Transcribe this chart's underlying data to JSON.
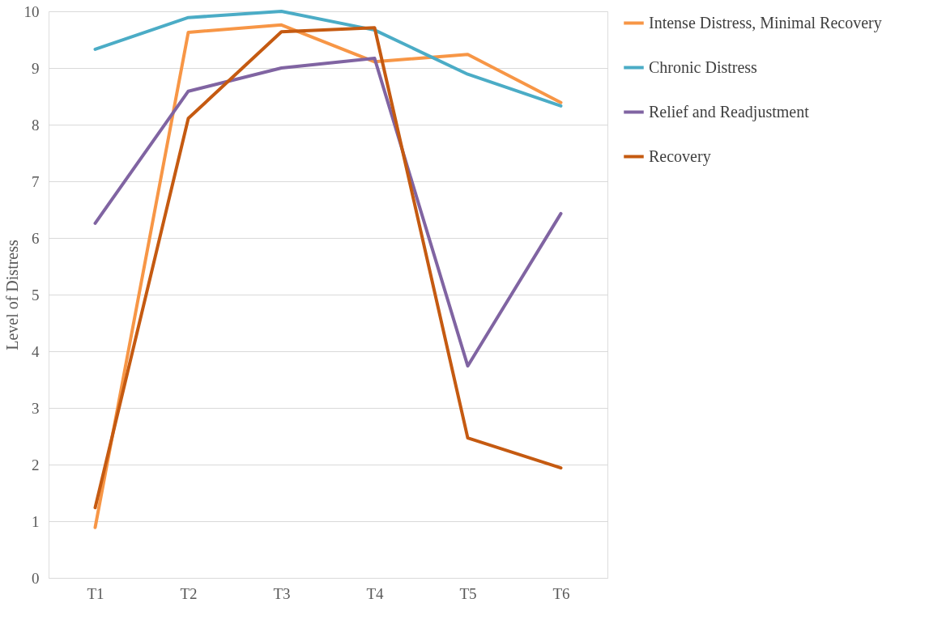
{
  "chart_data": {
    "type": "line",
    "ylabel": "Level of Distress",
    "categories": [
      "T1",
      "T2",
      "T3",
      "T4",
      "T5",
      "T6"
    ],
    "series": [
      {
        "name": "Intense Distress, Minimal Recovery",
        "color": "#f79646",
        "values": [
          0.89,
          9.63,
          9.76,
          9.11,
          9.24,
          8.39
        ]
      },
      {
        "name": "Chronic Distress",
        "color": "#4bacc6",
        "values": [
          9.33,
          9.89,
          10.0,
          9.67,
          8.89,
          8.33
        ]
      },
      {
        "name": "Relief and Readjustment",
        "color": "#8064a2",
        "values": [
          6.26,
          8.59,
          9.0,
          9.17,
          3.74,
          6.43
        ]
      },
      {
        "name": "Recovery",
        "color": "#c55a11",
        "values": [
          1.24,
          8.11,
          9.64,
          9.71,
          2.47,
          1.94
        ]
      }
    ],
    "ylim": [
      0,
      10
    ],
    "yticks": [
      0,
      1,
      2,
      3,
      4,
      5,
      6,
      7,
      8,
      9,
      10
    ],
    "grid": "y",
    "legend": "right",
    "marker": "none",
    "line_style": "solid"
  }
}
